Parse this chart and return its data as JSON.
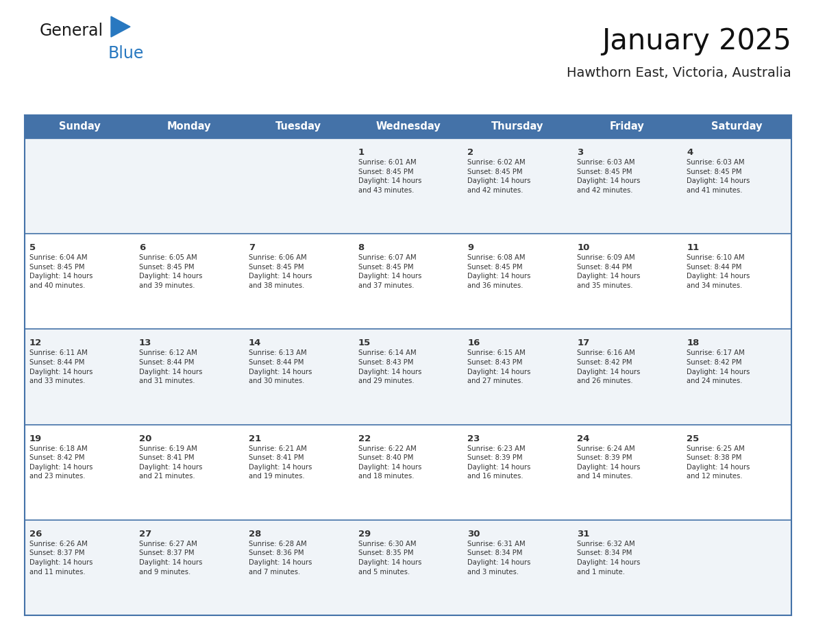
{
  "title": "January 2025",
  "subtitle": "Hawthorn East, Victoria, Australia",
  "header_bg_color": "#4472a8",
  "header_text_color": "#ffffff",
  "header_font_size": 10.5,
  "days_of_week": [
    "Sunday",
    "Monday",
    "Tuesday",
    "Wednesday",
    "Thursday",
    "Friday",
    "Saturday"
  ],
  "title_fontsize": 30,
  "subtitle_fontsize": 14,
  "bg_color": "#ffffff",
  "row_colors": [
    "#f0f4f8",
    "#ffffff",
    "#f0f4f8",
    "#ffffff",
    "#f0f4f8"
  ],
  "cell_text_color": "#333333",
  "day_number_fontsize": 9.5,
  "cell_info_fontsize": 7.2,
  "border_color": "#4472a8",
  "logo_general_color": "#1a1a1a",
  "logo_blue_color": "#2878c0",
  "logo_triangle_color": "#2878c0",
  "weeks": [
    {
      "days": [
        {
          "day": null,
          "info": null
        },
        {
          "day": null,
          "info": null
        },
        {
          "day": null,
          "info": null
        },
        {
          "day": "1",
          "info": "Sunrise: 6:01 AM\nSunset: 8:45 PM\nDaylight: 14 hours\nand 43 minutes."
        },
        {
          "day": "2",
          "info": "Sunrise: 6:02 AM\nSunset: 8:45 PM\nDaylight: 14 hours\nand 42 minutes."
        },
        {
          "day": "3",
          "info": "Sunrise: 6:03 AM\nSunset: 8:45 PM\nDaylight: 14 hours\nand 42 minutes."
        },
        {
          "day": "4",
          "info": "Sunrise: 6:03 AM\nSunset: 8:45 PM\nDaylight: 14 hours\nand 41 minutes."
        }
      ]
    },
    {
      "days": [
        {
          "day": "5",
          "info": "Sunrise: 6:04 AM\nSunset: 8:45 PM\nDaylight: 14 hours\nand 40 minutes."
        },
        {
          "day": "6",
          "info": "Sunrise: 6:05 AM\nSunset: 8:45 PM\nDaylight: 14 hours\nand 39 minutes."
        },
        {
          "day": "7",
          "info": "Sunrise: 6:06 AM\nSunset: 8:45 PM\nDaylight: 14 hours\nand 38 minutes."
        },
        {
          "day": "8",
          "info": "Sunrise: 6:07 AM\nSunset: 8:45 PM\nDaylight: 14 hours\nand 37 minutes."
        },
        {
          "day": "9",
          "info": "Sunrise: 6:08 AM\nSunset: 8:45 PM\nDaylight: 14 hours\nand 36 minutes."
        },
        {
          "day": "10",
          "info": "Sunrise: 6:09 AM\nSunset: 8:44 PM\nDaylight: 14 hours\nand 35 minutes."
        },
        {
          "day": "11",
          "info": "Sunrise: 6:10 AM\nSunset: 8:44 PM\nDaylight: 14 hours\nand 34 minutes."
        }
      ]
    },
    {
      "days": [
        {
          "day": "12",
          "info": "Sunrise: 6:11 AM\nSunset: 8:44 PM\nDaylight: 14 hours\nand 33 minutes."
        },
        {
          "day": "13",
          "info": "Sunrise: 6:12 AM\nSunset: 8:44 PM\nDaylight: 14 hours\nand 31 minutes."
        },
        {
          "day": "14",
          "info": "Sunrise: 6:13 AM\nSunset: 8:44 PM\nDaylight: 14 hours\nand 30 minutes."
        },
        {
          "day": "15",
          "info": "Sunrise: 6:14 AM\nSunset: 8:43 PM\nDaylight: 14 hours\nand 29 minutes."
        },
        {
          "day": "16",
          "info": "Sunrise: 6:15 AM\nSunset: 8:43 PM\nDaylight: 14 hours\nand 27 minutes."
        },
        {
          "day": "17",
          "info": "Sunrise: 6:16 AM\nSunset: 8:42 PM\nDaylight: 14 hours\nand 26 minutes."
        },
        {
          "day": "18",
          "info": "Sunrise: 6:17 AM\nSunset: 8:42 PM\nDaylight: 14 hours\nand 24 minutes."
        }
      ]
    },
    {
      "days": [
        {
          "day": "19",
          "info": "Sunrise: 6:18 AM\nSunset: 8:42 PM\nDaylight: 14 hours\nand 23 minutes."
        },
        {
          "day": "20",
          "info": "Sunrise: 6:19 AM\nSunset: 8:41 PM\nDaylight: 14 hours\nand 21 minutes."
        },
        {
          "day": "21",
          "info": "Sunrise: 6:21 AM\nSunset: 8:41 PM\nDaylight: 14 hours\nand 19 minutes."
        },
        {
          "day": "22",
          "info": "Sunrise: 6:22 AM\nSunset: 8:40 PM\nDaylight: 14 hours\nand 18 minutes."
        },
        {
          "day": "23",
          "info": "Sunrise: 6:23 AM\nSunset: 8:39 PM\nDaylight: 14 hours\nand 16 minutes."
        },
        {
          "day": "24",
          "info": "Sunrise: 6:24 AM\nSunset: 8:39 PM\nDaylight: 14 hours\nand 14 minutes."
        },
        {
          "day": "25",
          "info": "Sunrise: 6:25 AM\nSunset: 8:38 PM\nDaylight: 14 hours\nand 12 minutes."
        }
      ]
    },
    {
      "days": [
        {
          "day": "26",
          "info": "Sunrise: 6:26 AM\nSunset: 8:37 PM\nDaylight: 14 hours\nand 11 minutes."
        },
        {
          "day": "27",
          "info": "Sunrise: 6:27 AM\nSunset: 8:37 PM\nDaylight: 14 hours\nand 9 minutes."
        },
        {
          "day": "28",
          "info": "Sunrise: 6:28 AM\nSunset: 8:36 PM\nDaylight: 14 hours\nand 7 minutes."
        },
        {
          "day": "29",
          "info": "Sunrise: 6:30 AM\nSunset: 8:35 PM\nDaylight: 14 hours\nand 5 minutes."
        },
        {
          "day": "30",
          "info": "Sunrise: 6:31 AM\nSunset: 8:34 PM\nDaylight: 14 hours\nand 3 minutes."
        },
        {
          "day": "31",
          "info": "Sunrise: 6:32 AM\nSunset: 8:34 PM\nDaylight: 14 hours\nand 1 minute."
        },
        {
          "day": null,
          "info": null
        }
      ]
    }
  ]
}
